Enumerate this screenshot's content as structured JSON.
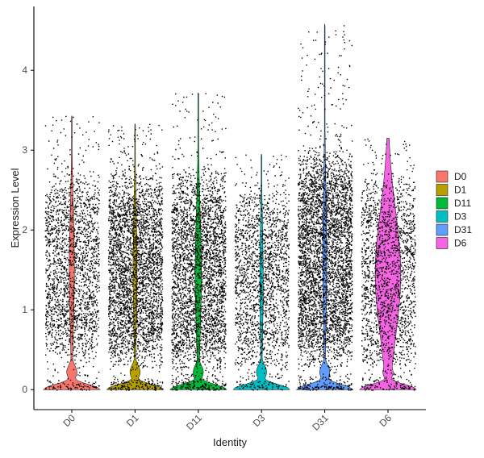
{
  "chart_data": {
    "type": "violin",
    "xlabel": "Identity",
    "ylabel": "Expression Level",
    "ylim": [
      -0.25,
      4.8
    ],
    "yticks": [
      "0",
      "1",
      "2",
      "3",
      "4"
    ],
    "grid": false,
    "legend_position": "right",
    "categories": [
      "D0",
      "D1",
      "D11",
      "D3",
      "D31",
      "D6"
    ],
    "colors": [
      "#F8766D",
      "#B79F00",
      "#00BA38",
      "#00BFC4",
      "#619CFF",
      "#F564E3"
    ],
    "series": [
      {
        "name": "D0",
        "max": 3.43,
        "zero_bulk": 0.35,
        "bulk_low": 0.5,
        "bulk_high": 2.5,
        "mid_width": 0.09,
        "points": 2200
      },
      {
        "name": "D1",
        "max": 3.33,
        "zero_bulk": 0.3,
        "bulk_low": 0.5,
        "bulk_high": 2.5,
        "mid_width": 0.07,
        "points": 3600
      },
      {
        "name": "D11",
        "max": 3.72,
        "zero_bulk": 0.3,
        "bulk_low": 0.4,
        "bulk_high": 2.5,
        "mid_width": 0.11,
        "points": 3400
      },
      {
        "name": "D3",
        "max": 2.95,
        "zero_bulk": 0.35,
        "bulk_low": 0.4,
        "bulk_high": 2.3,
        "mid_width": 0.06,
        "points": 2000
      },
      {
        "name": "D31",
        "max": 4.58,
        "zero_bulk": 0.3,
        "bulk_low": 0.5,
        "bulk_high": 2.8,
        "mid_width": 0.07,
        "points": 4400
      },
      {
        "name": "D6",
        "max": 3.15,
        "zero_bulk": 0.28,
        "bulk_low": 0.4,
        "bulk_high": 2.5,
        "mid_width": 0.45,
        "points": 2000
      }
    ]
  },
  "legend": {
    "items": [
      {
        "label": "D0",
        "color": "#F8766D"
      },
      {
        "label": "D1",
        "color": "#B79F00"
      },
      {
        "label": "D11",
        "color": "#00BA38"
      },
      {
        "label": "D3",
        "color": "#00BFC4"
      },
      {
        "label": "D31",
        "color": "#619CFF"
      },
      {
        "label": "D6",
        "color": "#F564E3"
      }
    ]
  }
}
